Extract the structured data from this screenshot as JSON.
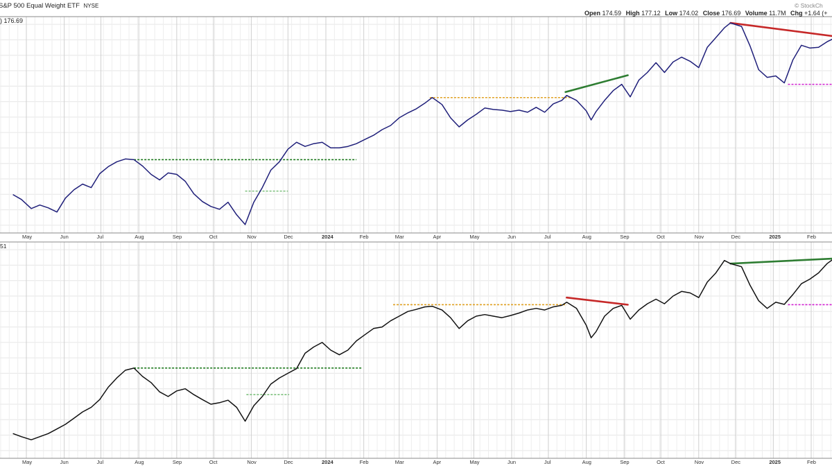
{
  "header": {
    "title": "S&P 500 Equal Weight ETF",
    "exchange": "NYSE",
    "watermark": "© StockCh",
    "quote": {
      "open_label": "Open",
      "open": "174.59",
      "high_label": "High",
      "high": "177.12",
      "low_label": "Low",
      "low": "174.02",
      "close_label": "Close",
      "close": "176.69",
      "volume_label": "Volume",
      "volume": "11.7M",
      "chg_label": "Chg",
      "chg": "+1.64 (+"
    },
    "last_value_label": ") 176.69",
    "lower_panel_label": "51"
  },
  "chart_data": [
    {
      "type": "line",
      "panel": "upper",
      "title": "S&P 500 Equal Weight ETF",
      "x_tick_labels": [
        "May",
        "Jun",
        "Jul",
        "Aug",
        "Sep",
        "Oct",
        "Nov",
        "Dec",
        "2024",
        "Feb",
        "Mar",
        "Apr",
        "May",
        "Jun",
        "Jul",
        "Aug",
        "Sep",
        "Oct",
        "Nov",
        "Dec",
        "2025",
        "Feb"
      ],
      "series": [
        {
          "color": "#1f1f7a",
          "x": [
            "2023-04-20",
            "2023-04-27",
            "2023-05-05",
            "2023-05-12",
            "2023-05-19",
            "2023-05-26",
            "2023-06-02",
            "2023-06-09",
            "2023-06-16",
            "2023-06-23",
            "2023-06-30",
            "2023-07-07",
            "2023-07-14",
            "2023-07-21",
            "2023-07-28",
            "2023-08-04",
            "2023-08-11",
            "2023-08-18",
            "2023-08-25",
            "2023-09-01",
            "2023-09-08",
            "2023-09-15",
            "2023-09-22",
            "2023-09-29",
            "2023-10-06",
            "2023-10-13",
            "2023-10-20",
            "2023-10-27",
            "2023-11-03",
            "2023-11-10",
            "2023-11-17",
            "2023-11-24",
            "2023-12-01",
            "2023-12-08",
            "2023-12-15",
            "2023-12-22",
            "2023-12-29",
            "2024-01-05",
            "2024-01-12",
            "2024-01-19",
            "2024-01-26",
            "2024-02-02",
            "2024-02-09",
            "2024-02-16",
            "2024-02-23",
            "2024-03-01",
            "2024-03-08",
            "2024-03-15",
            "2024-03-22",
            "2024-03-28",
            "2024-04-05",
            "2024-04-12",
            "2024-04-19",
            "2024-04-26",
            "2024-05-03",
            "2024-05-10",
            "2024-05-17",
            "2024-05-24",
            "2024-05-31",
            "2024-06-07",
            "2024-06-14",
            "2024-06-21",
            "2024-06-28",
            "2024-07-05",
            "2024-07-12",
            "2024-07-16",
            "2024-07-24",
            "2024-08-01",
            "2024-08-05",
            "2024-08-09",
            "2024-08-16",
            "2024-08-23",
            "2024-08-30",
            "2024-09-06",
            "2024-09-13",
            "2024-09-20",
            "2024-09-27",
            "2024-10-04",
            "2024-10-11",
            "2024-10-18",
            "2024-10-25",
            "2024-11-01",
            "2024-11-08",
            "2024-11-15",
            "2024-11-22",
            "2024-11-27",
            "2024-12-06",
            "2024-12-13",
            "2024-12-20",
            "2024-12-27",
            "2025-01-03",
            "2025-01-10",
            "2025-01-17",
            "2025-01-24",
            "2025-01-31",
            "2025-02-07",
            "2025-02-14",
            "2025-02-21"
          ],
          "values": [
            150.5,
            149.8,
            148.5,
            149.0,
            148.6,
            148.0,
            150.0,
            151.2,
            152.0,
            151.5,
            153.5,
            154.5,
            155.2,
            155.6,
            155.5,
            154.6,
            153.4,
            152.6,
            153.6,
            153.4,
            152.4,
            150.6,
            149.5,
            148.8,
            148.4,
            149.4,
            147.6,
            146.2,
            149.4,
            151.5,
            154.0,
            155.2,
            157.0,
            158.0,
            157.4,
            157.8,
            158.0,
            157.2,
            157.2,
            157.4,
            157.8,
            158.4,
            159.0,
            159.8,
            160.4,
            161.5,
            162.2,
            162.8,
            163.6,
            164.4,
            163.4,
            161.5,
            160.2,
            161.2,
            162.0,
            162.9,
            162.7,
            162.6,
            162.4,
            162.6,
            162.3,
            163.0,
            162.3,
            163.5,
            164.0,
            164.7,
            164.0,
            162.5,
            161.2,
            162.4,
            164.0,
            165.4,
            166.3,
            164.5,
            166.9,
            168.0,
            169.4,
            168.0,
            169.5,
            170.2,
            169.6,
            168.7,
            171.6,
            173.0,
            174.4,
            175.1,
            174.6,
            171.8,
            168.4,
            167.3,
            167.5,
            166.5,
            169.8,
            171.9,
            171.5,
            171.6,
            172.4,
            173.0
          ]
        }
      ],
      "y_range": [
        145,
        176
      ],
      "annotations": [
        {
          "kind": "support",
          "style": "dashed",
          "color": "#1e7a1e",
          "y": 155.5,
          "from": "2023-07-28",
          "to": "2024-01-26"
        },
        {
          "kind": "support",
          "style": "dashed",
          "color": "#7cc07c",
          "y": 151.0,
          "from": "2023-10-27",
          "to": "2023-12-01"
        },
        {
          "kind": "resistance",
          "style": "dashed",
          "color": "#e0a020",
          "y": 164.4,
          "from": "2024-03-26",
          "to": "2024-07-20"
        },
        {
          "kind": "trendline",
          "style": "solid",
          "color": "#2e7d32",
          "from": {
            "x": "2024-07-15",
            "y": 165.2
          },
          "to": {
            "x": "2024-09-04",
            "y": 167.6
          }
        },
        {
          "kind": "trendline",
          "style": "solid",
          "color": "#c62828",
          "from": {
            "x": "2024-11-27",
            "y": 175.1
          },
          "to": {
            "x": "2025-02-28",
            "y": 173.0
          }
        },
        {
          "kind": "support",
          "style": "dashed",
          "color": "#d020d0",
          "y": 166.3,
          "from": "2025-01-13",
          "to": "2025-02-28"
        }
      ],
      "grid": true
    },
    {
      "type": "line",
      "panel": "lower",
      "x_tick_labels": [
        "May",
        "Jun",
        "Jul",
        "Aug",
        "Sep",
        "Oct",
        "Nov",
        "Dec",
        "2024",
        "Feb",
        "Mar",
        "Apr",
        "May",
        "Jun",
        "Jul",
        "Aug",
        "Sep",
        "Oct",
        "Nov",
        "Dec",
        "2025",
        "Feb"
      ],
      "series": [
        {
          "color": "#111111",
          "x": [
            "2023-04-20",
            "2023-04-27",
            "2023-05-05",
            "2023-05-12",
            "2023-05-19",
            "2023-05-26",
            "2023-06-02",
            "2023-06-09",
            "2023-06-16",
            "2023-06-23",
            "2023-06-30",
            "2023-07-07",
            "2023-07-14",
            "2023-07-21",
            "2023-07-28",
            "2023-08-04",
            "2023-08-11",
            "2023-08-18",
            "2023-08-25",
            "2023-09-01",
            "2023-09-08",
            "2023-09-15",
            "2023-09-22",
            "2023-09-29",
            "2023-10-06",
            "2023-10-13",
            "2023-10-20",
            "2023-10-27",
            "2023-11-03",
            "2023-11-10",
            "2023-11-17",
            "2023-11-24",
            "2023-12-01",
            "2023-12-08",
            "2023-12-15",
            "2023-12-22",
            "2023-12-29",
            "2024-01-05",
            "2024-01-12",
            "2024-01-19",
            "2024-01-26",
            "2024-02-02",
            "2024-02-09",
            "2024-02-16",
            "2024-02-23",
            "2024-03-01",
            "2024-03-08",
            "2024-03-15",
            "2024-03-22",
            "2024-03-28",
            "2024-04-05",
            "2024-04-12",
            "2024-04-19",
            "2024-04-26",
            "2024-05-03",
            "2024-05-10",
            "2024-05-17",
            "2024-05-24",
            "2024-05-31",
            "2024-06-07",
            "2024-06-14",
            "2024-06-21",
            "2024-06-28",
            "2024-07-05",
            "2024-07-12",
            "2024-07-16",
            "2024-07-24",
            "2024-08-01",
            "2024-08-05",
            "2024-08-09",
            "2024-08-16",
            "2024-08-23",
            "2024-08-30",
            "2024-09-06",
            "2024-09-13",
            "2024-09-20",
            "2024-09-27",
            "2024-10-04",
            "2024-10-11",
            "2024-10-18",
            "2024-10-25",
            "2024-11-01",
            "2024-11-08",
            "2024-11-15",
            "2024-11-22",
            "2024-11-27",
            "2024-12-06",
            "2024-12-13",
            "2024-12-20",
            "2024-12-27",
            "2025-01-03",
            "2025-01-10",
            "2025-01-17",
            "2025-01-24",
            "2025-01-31",
            "2025-02-07",
            "2025-02-14",
            "2025-02-21"
          ],
          "values": [
            28.0,
            27.0,
            26.0,
            27.0,
            28.0,
            29.5,
            31.0,
            33.0,
            35.0,
            36.5,
            39.0,
            43.0,
            46.0,
            48.5,
            49.2,
            46.5,
            44.5,
            41.5,
            40.0,
            41.8,
            42.5,
            40.6,
            39.0,
            37.5,
            38.0,
            38.8,
            36.5,
            32.0,
            37.0,
            40.0,
            44.0,
            46.0,
            47.5,
            49.0,
            54.0,
            56.0,
            57.5,
            55.0,
            53.5,
            55.0,
            58.0,
            60.0,
            62.0,
            62.5,
            64.5,
            66.0,
            67.5,
            68.2,
            69.0,
            69.2,
            68.0,
            65.5,
            62.0,
            64.5,
            66.0,
            66.5,
            66.0,
            65.5,
            66.2,
            67.0,
            68.0,
            68.5,
            68.0,
            69.0,
            69.5,
            70.5,
            68.5,
            63.0,
            59.0,
            61.0,
            66.0,
            68.5,
            69.5,
            65.0,
            68.0,
            70.0,
            71.5,
            70.0,
            72.5,
            74.0,
            73.5,
            72.0,
            77.0,
            80.0,
            84.0,
            83.0,
            82.0,
            76.0,
            71.0,
            68.5,
            70.5,
            69.8,
            73.0,
            76.5,
            78.0,
            80.0,
            83.0,
            85.0
          ]
        }
      ],
      "y_range": [
        20,
        90
      ],
      "annotations": [
        {
          "kind": "support",
          "style": "dashed",
          "color": "#1e7a1e",
          "y": 49.2,
          "from": "2023-07-28",
          "to": "2024-01-30"
        },
        {
          "kind": "support",
          "style": "dashed",
          "color": "#7cc07c",
          "y": 40.6,
          "from": "2023-10-28",
          "to": "2023-12-02"
        },
        {
          "kind": "resistance",
          "style": "dashed",
          "color": "#e0a020",
          "y": 69.7,
          "from": "2024-02-25",
          "to": "2024-07-16"
        },
        {
          "kind": "trendline",
          "style": "solid",
          "color": "#c62828",
          "from": {
            "x": "2024-07-16",
            "y": 72.0
          },
          "to": {
            "x": "2024-09-04",
            "y": 69.7
          }
        },
        {
          "kind": "trendline",
          "style": "solid",
          "color": "#2e7d32",
          "from": {
            "x": "2024-11-27",
            "y": 83.0
          },
          "to": {
            "x": "2025-02-28",
            "y": 84.8
          }
        },
        {
          "kind": "support",
          "style": "dashed",
          "color": "#d020d0",
          "y": 69.7,
          "from": "2025-01-13",
          "to": "2025-02-28"
        }
      ],
      "grid": true
    }
  ]
}
